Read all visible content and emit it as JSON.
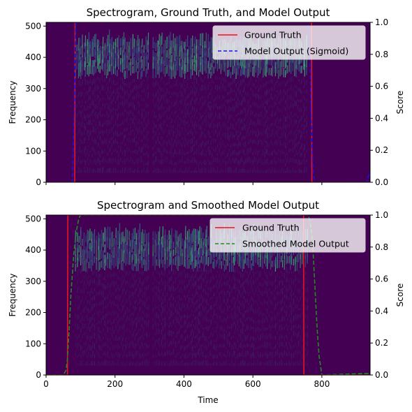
{
  "colors": {
    "ground_truth": "#e8141e",
    "model_output": "#1414e6",
    "smoothed_output": "#1f8a1f",
    "spectrogram_background": "#440154",
    "spectrogram_mid": "#31688e",
    "spectrogram_high": "#35b779"
  },
  "chart_data": [
    {
      "type": "line",
      "title": "Spectrogram, Ground Truth, and Model Output",
      "xlabel": "",
      "ylabel": "Frequency",
      "y2label": "Score",
      "xlim": [
        0,
        940
      ],
      "ylim": [
        0,
        512
      ],
      "y2lim": [
        0,
        1
      ],
      "x_ticks": [
        0,
        200,
        400,
        600,
        800
      ],
      "x_tick_labels_visible": false,
      "y_ticks": [
        0,
        100,
        200,
        300,
        400,
        500
      ],
      "y2_ticks": [
        "0.0",
        "0.2",
        "0.4",
        "0.6",
        "0.8",
        "1.0"
      ],
      "background": "spectrogram",
      "legend_position": "top-right",
      "series": [
        {
          "name": "Ground Truth",
          "style": "solid",
          "color": "#e8141e",
          "x": [
            0,
            83,
            84,
            770,
            771,
            940
          ],
          "y": [
            0,
            0,
            1,
            1,
            0,
            0
          ]
        },
        {
          "name": "Model Output (Sigmoid)",
          "style": "dashed",
          "color": "#1414e6",
          "x": [
            0,
            76,
            82,
            86,
            160,
            300,
            400,
            760,
            766,
            768,
            775,
            780,
            930,
            940
          ],
          "y": [
            0,
            0,
            0.5,
            1,
            1,
            1,
            1,
            1,
            0.75,
            0.45,
            0.05,
            0,
            0,
            0.07
          ]
        }
      ]
    },
    {
      "type": "line",
      "title": "Spectrogram and Smoothed Model Output",
      "xlabel": "Time",
      "ylabel": "Frequency",
      "y2label": "Score",
      "xlim": [
        0,
        940
      ],
      "ylim": [
        0,
        512
      ],
      "y2lim": [
        0,
        1
      ],
      "x_ticks": [
        0,
        200,
        400,
        600,
        800
      ],
      "y_ticks": [
        0,
        100,
        200,
        300,
        400,
        500
      ],
      "y2_ticks": [
        "0.0",
        "0.2",
        "0.4",
        "0.6",
        "0.8",
        "1.0"
      ],
      "background": "spectrogram",
      "legend_position": "top-right",
      "series": [
        {
          "name": "Ground Truth",
          "style": "solid",
          "color": "#e8141e",
          "x": [
            0,
            62,
            63,
            747,
            748,
            940
          ],
          "y": [
            0,
            0,
            1,
            1,
            0,
            0
          ]
        },
        {
          "name": "Smoothed Model Output",
          "style": "dashed",
          "color": "#1f8a1f",
          "x": [
            0,
            50,
            58,
            62,
            66,
            72,
            80,
            88,
            95,
            100,
            400,
            760,
            765,
            770,
            775,
            780,
            786,
            792,
            800,
            940
          ],
          "y": [
            0,
            0,
            0.03,
            0.1,
            0.25,
            0.5,
            0.75,
            0.9,
            0.98,
            1,
            1,
            1,
            0.97,
            0.9,
            0.75,
            0.55,
            0.3,
            0.12,
            0,
            0.01
          ]
        }
      ]
    }
  ]
}
